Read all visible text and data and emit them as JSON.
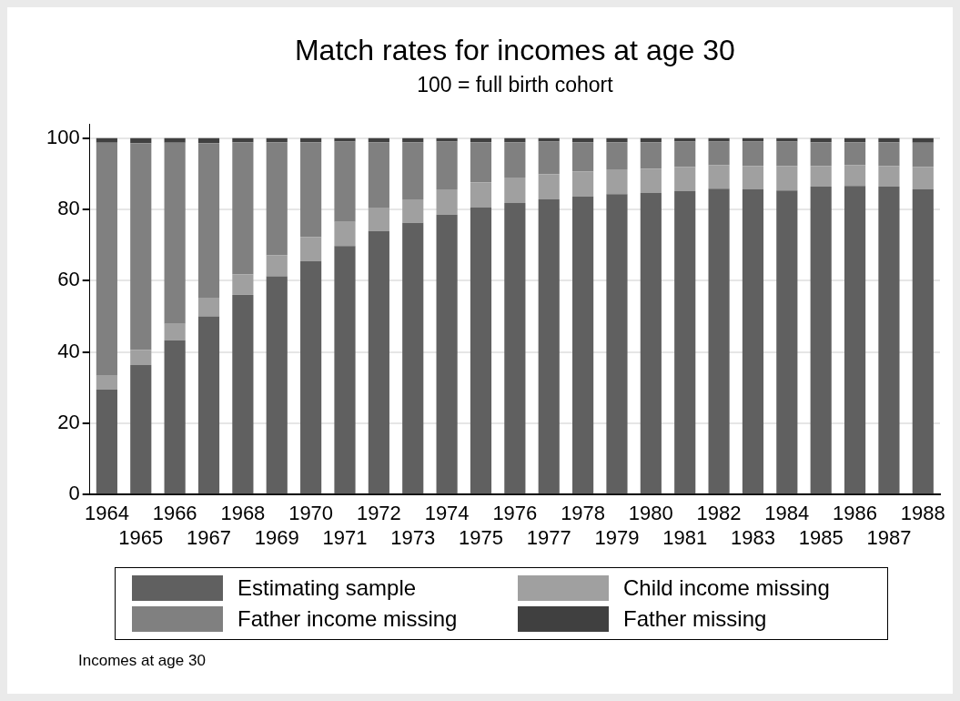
{
  "chart_data": {
    "type": "bar",
    "title": "Match rates for incomes at age 30",
    "subtitle": "100 = full birth cohort",
    "stacked": true,
    "grid": "y",
    "legend": "bottom",
    "ylim": [
      0,
      104
    ],
    "yticks": [
      0,
      20,
      40,
      60,
      80,
      100
    ],
    "categories": [
      "1964",
      "1965",
      "1966",
      "1967",
      "1968",
      "1969",
      "1970",
      "1971",
      "1972",
      "1973",
      "1974",
      "1975",
      "1976",
      "1977",
      "1978",
      "1979",
      "1980",
      "1981",
      "1982",
      "1983",
      "1984",
      "1985",
      "1986",
      "1987",
      "1988"
    ],
    "series": [
      {
        "name": "Estimating sample",
        "color": "#606060",
        "values": [
          29.5,
          36.3,
          43.3,
          50.0,
          56.0,
          61.2,
          65.5,
          69.7,
          73.9,
          76.2,
          78.5,
          80.5,
          81.8,
          82.8,
          83.6,
          84.3,
          84.6,
          85.1,
          85.8,
          85.6,
          85.3,
          86.4,
          86.6,
          86.4,
          85.6
        ]
      },
      {
        "name": "Child income missing",
        "color": "#a0a0a0",
        "values": [
          3.8,
          4.3,
          4.6,
          5.0,
          5.8,
          5.9,
          6.7,
          6.8,
          6.4,
          6.6,
          7.1,
          7.1,
          7.1,
          7.1,
          7.0,
          6.9,
          6.8,
          6.8,
          6.6,
          6.6,
          6.9,
          5.8,
          5.8,
          5.8,
          6.3
        ]
      },
      {
        "name": "Father income missing",
        "color": "#808080",
        "values": [
          65.4,
          58.0,
          50.8,
          43.6,
          37.0,
          31.7,
          26.6,
          22.5,
          18.5,
          16.0,
          13.4,
          11.2,
          9.9,
          9.1,
          8.2,
          7.6,
          7.4,
          7.1,
          6.6,
          6.8,
          6.8,
          6.6,
          6.4,
          6.6,
          6.8
        ]
      },
      {
        "name": "Father missing",
        "color": "#404040",
        "values": [
          1.3,
          1.4,
          1.3,
          1.4,
          1.2,
          1.2,
          1.2,
          1.0,
          1.2,
          1.2,
          1.0,
          1.2,
          1.2,
          1.0,
          1.2,
          1.2,
          1.2,
          1.0,
          1.0,
          1.0,
          1.0,
          1.2,
          1.2,
          1.2,
          1.3
        ]
      }
    ],
    "annotations": [
      "Incomes at age 30"
    ]
  }
}
